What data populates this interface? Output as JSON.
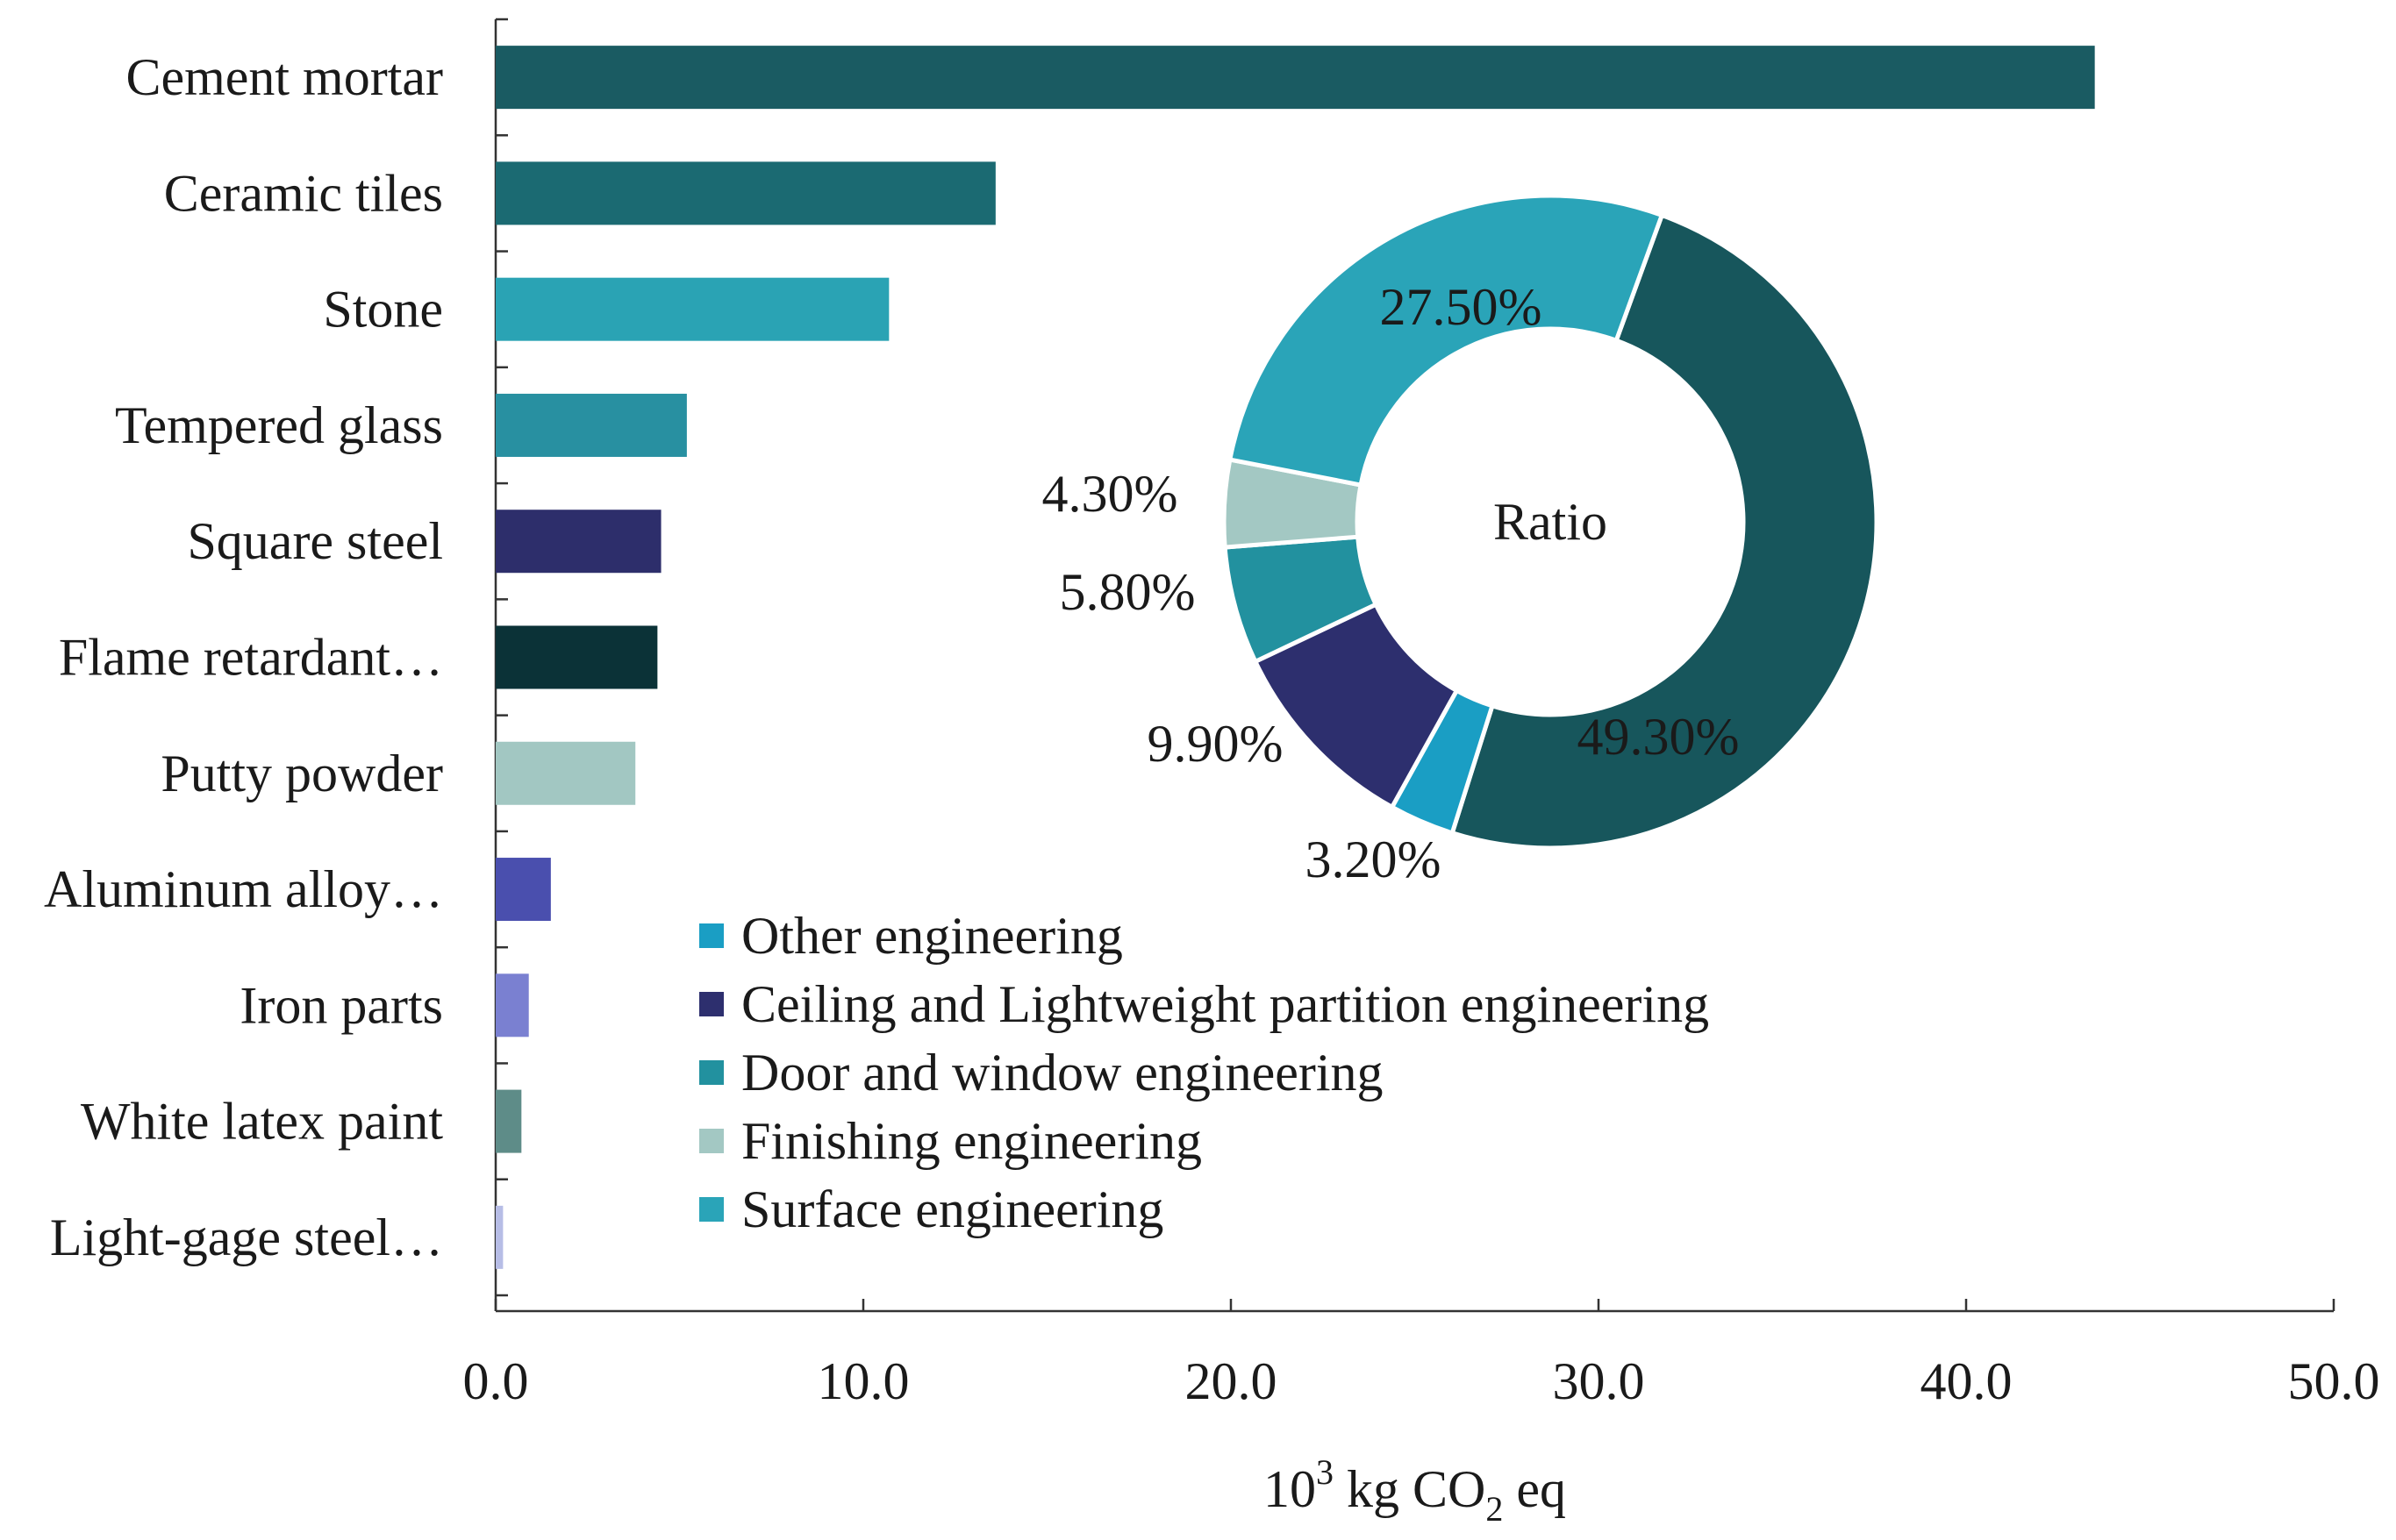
{
  "chart_data": [
    {
      "type": "bar",
      "orientation": "horizontal",
      "categories": [
        "Cement mortar",
        "Ceramic tiles",
        "Stone",
        "Tempered glass",
        "Square steel",
        "Flame retardant…",
        "Putty powder",
        "Aluminum alloy…",
        "Iron parts",
        "White latex paint",
        "Light-gage steel…"
      ],
      "values": [
        43.5,
        13.6,
        10.7,
        5.2,
        4.5,
        4.4,
        3.8,
        1.5,
        0.9,
        0.7,
        0.2
      ],
      "colors": [
        "#1a5b62",
        "#1b6a72",
        "#2aa3b4",
        "#2890a1",
        "#2d2e6b",
        "#0b3237",
        "#a2c7c2",
        "#4a4fae",
        "#7a80d1",
        "#5e8c88",
        "#b7bde6"
      ],
      "xlabel": {
        "base": "10",
        "sup": "3",
        "mid": " kg CO",
        "sub": "2",
        "end": " eq"
      },
      "xlim": [
        0,
        50
      ],
      "xticks": [
        0,
        10,
        20,
        30,
        40,
        50
      ],
      "xtick_labels": [
        "0.0",
        "10.0",
        "20.0",
        "30.0",
        "40.0",
        "50.0"
      ],
      "grid": false
    },
    {
      "type": "pie",
      "style": "donut",
      "center_label": "Ratio",
      "slices": [
        {
          "category": "Surface engineering",
          "value": 49.3,
          "label": "49.30%",
          "color": "#17565c"
        },
        {
          "category": "Other engineering",
          "value": 3.2,
          "label": "3.20%",
          "color": "#1a9ec4"
        },
        {
          "category": "Ceiling and Lightweight partition engineering",
          "value": 9.9,
          "label": "9.90%",
          "color": "#2d2f6e"
        },
        {
          "category": "Door and window engineering",
          "value": 5.8,
          "label": "5.80%",
          "color": "#22919f"
        },
        {
          "category": "Finishing engineering",
          "value": 4.3,
          "label": "4.30%",
          "color": "#a3c8c3"
        },
        {
          "category": "Surface engineering",
          "value": 27.5,
          "label": "27.50%",
          "color": "#2aa4b8"
        }
      ],
      "legend": [
        {
          "label": "Other engineering",
          "color": "#1a9ec4"
        },
        {
          "label": "Ceiling and Lightweight partition engineering",
          "color": "#2d2f6e"
        },
        {
          "label": "Door and window engineering",
          "color": "#22919f"
        },
        {
          "label": "Finishing engineering",
          "color": "#a3c8c3"
        },
        {
          "label": "Surface engineering",
          "color": "#2aa4b8"
        }
      ],
      "legend_position": "bottom-left of donut"
    }
  ]
}
